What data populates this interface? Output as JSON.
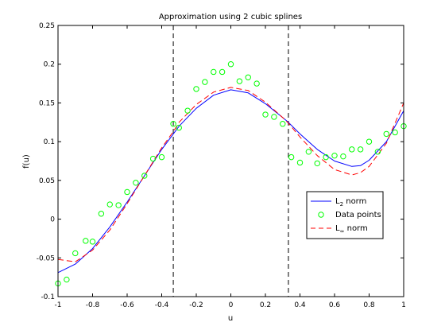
{
  "chart_data": {
    "type": "line",
    "title": "Approximation using 2 cubic splines",
    "xlabel": "u",
    "ylabel": "f(u)",
    "xlim": [
      -1,
      1
    ],
    "ylim": [
      -0.1,
      0.25
    ],
    "xticks": [
      -1,
      -0.8,
      -0.6,
      -0.4,
      -0.2,
      0,
      0.2,
      0.4,
      0.6,
      0.8,
      1
    ],
    "xtick_labels": [
      "-1",
      "-0.8",
      "-0.6",
      "-0.4",
      "-0.2",
      "0",
      "0.2",
      "0.4",
      "0.6",
      "0.8",
      "1"
    ],
    "yticks": [
      -0.1,
      -0.05,
      0,
      0.05,
      0.1,
      0.15,
      0.2,
      0.25
    ],
    "ytick_labels": [
      "-0.1",
      "-0.05",
      "0",
      "0.05",
      "0.1",
      "0.15",
      "0.2",
      "0.25"
    ],
    "grid": false,
    "legend_position": "lower-right",
    "knots": [
      -0.333,
      0.333
    ],
    "knot_color": "#000000",
    "series": [
      {
        "name_base": "L",
        "name_sub": "2",
        "name_rest": " norm",
        "kind": "line",
        "color": "#0000ff",
        "dash": "solid",
        "x": [
          -1,
          -0.9,
          -0.8,
          -0.7,
          -0.6,
          -0.5,
          -0.4,
          -0.333,
          -0.3,
          -0.2,
          -0.1,
          0,
          0.1,
          0.2,
          0.3,
          0.333,
          0.4,
          0.5,
          0.6,
          0.7,
          0.75,
          0.8,
          0.9,
          1
        ],
        "y": [
          -0.069,
          -0.058,
          -0.038,
          -0.01,
          0.022,
          0.056,
          0.09,
          0.11,
          0.12,
          0.143,
          0.16,
          0.167,
          0.163,
          0.149,
          0.131,
          0.125,
          0.11,
          0.09,
          0.075,
          0.068,
          0.069,
          0.076,
          0.1,
          0.14
        ]
      },
      {
        "name": "Data points",
        "kind": "scatter",
        "color": "#00ff00",
        "x": [
          -1,
          -0.95,
          -0.9,
          -0.84,
          -0.8,
          -0.75,
          -0.7,
          -0.65,
          -0.6,
          -0.55,
          -0.5,
          -0.45,
          -0.4,
          -0.333,
          -0.3,
          -0.25,
          -0.2,
          -0.15,
          -0.1,
          -0.05,
          0,
          0.05,
          0.1,
          0.15,
          0.2,
          0.25,
          0.3,
          0.35,
          0.4,
          0.45,
          0.5,
          0.55,
          0.6,
          0.65,
          0.7,
          0.75,
          0.8,
          0.85,
          0.9,
          0.95,
          1
        ],
        "y": [
          -0.083,
          -0.078,
          -0.044,
          -0.028,
          -0.029,
          0.007,
          0.019,
          0.018,
          0.035,
          0.047,
          0.056,
          0.078,
          0.08,
          0.123,
          0.118,
          0.14,
          0.168,
          0.177,
          0.19,
          0.19,
          0.2,
          0.178,
          0.183,
          0.175,
          0.135,
          0.132,
          0.123,
          0.08,
          0.073,
          0.087,
          0.072,
          0.08,
          0.082,
          0.081,
          0.09,
          0.09,
          0.1,
          0.087,
          0.11,
          0.112,
          0.12
        ]
      },
      {
        "name_base": "L",
        "name_sub": "∞",
        "name_rest": " norm",
        "kind": "line",
        "color": "#ff0000",
        "dash": "dashed",
        "x": [
          -1,
          -0.9,
          -0.8,
          -0.7,
          -0.6,
          -0.5,
          -0.4,
          -0.333,
          -0.3,
          -0.2,
          -0.1,
          0,
          0.1,
          0.2,
          0.3,
          0.333,
          0.4,
          0.5,
          0.6,
          0.7,
          0.75,
          0.8,
          0.9,
          1
        ],
        "y": [
          -0.052,
          -0.055,
          -0.04,
          -0.014,
          0.02,
          0.056,
          0.092,
          0.113,
          0.125,
          0.148,
          0.164,
          0.17,
          0.166,
          0.151,
          0.131,
          0.124,
          0.106,
          0.082,
          0.064,
          0.057,
          0.06,
          0.068,
          0.098,
          0.15
        ]
      }
    ]
  }
}
